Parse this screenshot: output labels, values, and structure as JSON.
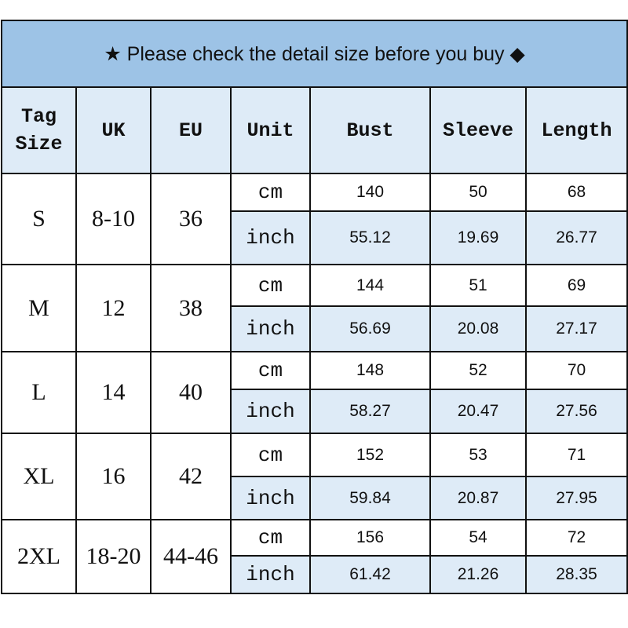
{
  "title": "★ Please check the detail size before you buy ◆",
  "headers": {
    "tag_size_line1": "Tag",
    "tag_size_line2": "Size",
    "uk": "UK",
    "eu": "EU",
    "unit": "Unit",
    "bust": "Bust",
    "sleeve": "Sleeve",
    "length": "Length"
  },
  "colors": {
    "title_bg": "#9DC3E6",
    "header_bg": "#DEEBF7",
    "inch_row_bg": "#DEEBF7"
  },
  "sizes": [
    {
      "tag": "S",
      "uk": "8-10",
      "eu": "36",
      "cm": {
        "unit": "cm",
        "bust": "140",
        "sleeve": "50",
        "length": "68"
      },
      "inch": {
        "unit": "inch",
        "bust": "55.12",
        "sleeve": "19.69",
        "length": "26.77"
      }
    },
    {
      "tag": "M",
      "uk": "12",
      "eu": "38",
      "cm": {
        "unit": "cm",
        "bust": "144",
        "sleeve": "51",
        "length": "69"
      },
      "inch": {
        "unit": "inch",
        "bust": "56.69",
        "sleeve": "20.08",
        "length": "27.17"
      }
    },
    {
      "tag": "L",
      "uk": "14",
      "eu": "40",
      "cm": {
        "unit": "cm",
        "bust": "148",
        "sleeve": "52",
        "length": "70"
      },
      "inch": {
        "unit": "inch",
        "bust": "58.27",
        "sleeve": "20.47",
        "length": "27.56"
      }
    },
    {
      "tag": "XL",
      "uk": "16",
      "eu": "42",
      "cm": {
        "unit": "cm",
        "bust": "152",
        "sleeve": "53",
        "length": "71"
      },
      "inch": {
        "unit": "inch",
        "bust": "59.84",
        "sleeve": "20.87",
        "length": "27.95"
      }
    },
    {
      "tag": "2XL",
      "uk": "18-20",
      "eu": "44-46",
      "cm": {
        "unit": "cm",
        "bust": "156",
        "sleeve": "54",
        "length": "72"
      },
      "inch": {
        "unit": "inch",
        "bust": "61.42",
        "sleeve": "21.26",
        "length": "28.35"
      }
    }
  ]
}
